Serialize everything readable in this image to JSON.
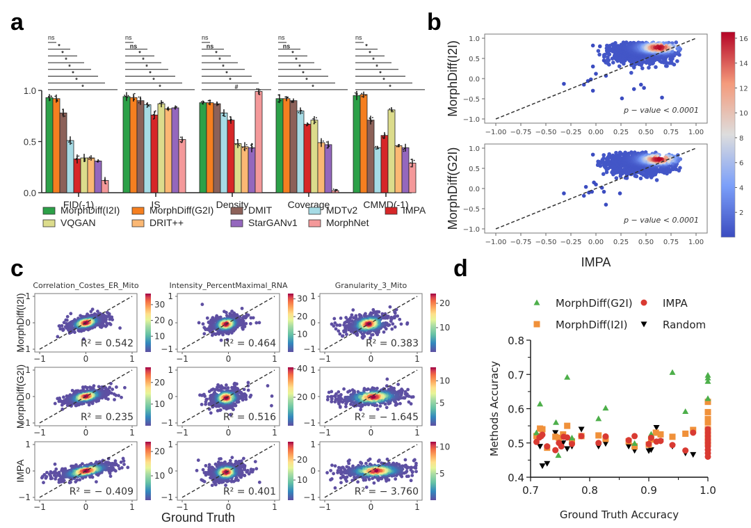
{
  "panels": {
    "a": "a",
    "b": "b",
    "c": "c",
    "d": "d"
  },
  "chart_data": [
    {
      "id": "a",
      "type": "bar",
      "title": "",
      "xlabel": "",
      "ylabel": "",
      "ylim": [
        0,
        1.0
      ],
      "yticks": [
        "0.0",
        "0.5",
        "1.0"
      ],
      "yticks_values": [
        0,
        0.5,
        1.0
      ],
      "categories": [
        "FID(-1)",
        "IS",
        "Density",
        "Coverage",
        "CMMD(-1)"
      ],
      "series": [
        {
          "name": "MorphDiff(I2I)",
          "color": "#2ca048",
          "values": [
            0.93,
            0.94,
            0.88,
            0.92,
            0.95
          ]
        },
        {
          "name": "MorphDiff(G2I)",
          "color": "#f57f20",
          "values": [
            0.92,
            0.93,
            0.88,
            0.92,
            0.96
          ]
        },
        {
          "name": "DMIT",
          "color": "#8c6159",
          "values": [
            0.78,
            0.9,
            0.87,
            0.9,
            0.71
          ]
        },
        {
          "name": "MDTv2",
          "color": "#a6dbe5",
          "values": [
            0.51,
            0.86,
            0.78,
            0.8,
            0.44
          ]
        },
        {
          "name": "IMPA",
          "color": "#d62728",
          "values": [
            0.33,
            0.76,
            0.71,
            0.67,
            0.56
          ]
        },
        {
          "name": "VQGAN",
          "color": "#dcdc8c",
          "values": [
            0.34,
            0.87,
            0.48,
            0.71,
            0.81
          ]
        },
        {
          "name": "DRIT++",
          "color": "#fbb874",
          "values": [
            0.34,
            0.82,
            0.45,
            0.49,
            0.46
          ]
        },
        {
          "name": "StarGANv1",
          "color": "#9467bd",
          "values": [
            0.31,
            0.83,
            0.44,
            0.47,
            0.44
          ]
        },
        {
          "name": "MorphNet",
          "color": "#f4999a",
          "values": [
            0.12,
            0.52,
            0.99,
            0.02,
            0.29
          ]
        }
      ],
      "significance": [
        [
          "ns",
          "*",
          "*",
          "*",
          "*",
          "*",
          "*",
          "*"
        ],
        [
          "ns",
          "ns",
          "*",
          "*",
          "*",
          "*",
          "*",
          "*"
        ],
        [
          "ns",
          "ns",
          "*",
          "*",
          "*",
          "*",
          "*",
          "#"
        ],
        [
          "ns",
          "ns",
          "*",
          "*",
          "*",
          "*",
          "*",
          "*"
        ],
        [
          "ns",
          "*",
          "*",
          "*",
          "*",
          "*",
          "*",
          "*"
        ]
      ],
      "legend": {
        "placement": "bottom",
        "entries": [
          "MorphDiff(I2I)",
          "MorphDiff(G2I)",
          "DMIT",
          "MDTv2",
          "IMPA",
          "VQGAN",
          "DRIT++",
          "StarGANv1",
          "MorphNet"
        ]
      }
    },
    {
      "id": "b",
      "type": "scatter",
      "subplots": [
        {
          "ylabel": "MorphDiff(I2I)",
          "annotation": "p − value < 0.0001",
          "density_peak": [
            0.63,
            0.77
          ],
          "outliers": [
            [
              -0.32,
              -0.13
            ],
            [
              -0.12,
              -0.15
            ],
            [
              -0.05,
              -0.02
            ],
            [
              -0.03,
              -0.3
            ],
            [
              -0.03,
              0.3
            ],
            [
              -0.03,
              0.82
            ],
            [
              0.04,
              0.8
            ],
            [
              0.1,
              0.07
            ],
            [
              0.26,
              -0.49
            ],
            [
              0.38,
              -0.26
            ],
            [
              0.45,
              -0.15
            ],
            [
              0.48,
              -0.23
            ],
            [
              0.66,
              -0.47
            ],
            [
              0.0,
              0.12
            ],
            [
              -0.08,
              -0.06
            ],
            [
              0.08,
              0.45
            ]
          ]
        },
        {
          "ylabel": "MorphDiff(G2I)",
          "annotation": "p − value < 0.0001",
          "density_peak": [
            0.63,
            0.73
          ],
          "outliers": [
            [
              -0.32,
              -0.12
            ],
            [
              -0.12,
              -0.18
            ],
            [
              -0.1,
              0.04
            ],
            [
              -0.07,
              -0.1
            ],
            [
              -0.04,
              -0.08
            ],
            [
              -0.03,
              0.84
            ],
            [
              0.1,
              -0.4
            ],
            [
              0.24,
              -0.12
            ],
            [
              0.08,
              -0.08
            ],
            [
              -0.02,
              0.15
            ],
            [
              0.0,
              0.1
            ],
            [
              0.06,
              0.02
            ]
          ]
        }
      ],
      "xlabel": "IMPA",
      "xlim": [
        -1.0,
        1.0
      ],
      "ylim": [
        -1.0,
        1.0
      ],
      "xticks": [
        "−1.00",
        "−0.75",
        "−0.50",
        "−0.25",
        "0.00",
        "0.25",
        "0.50",
        "0.75",
        "1.00"
      ],
      "yticks": [
        "−1.0",
        "−0.5",
        "0.0",
        "0.5",
        "1.0"
      ],
      "colorbar": {
        "ticks": [
          "2",
          "4",
          "6",
          "8",
          "10",
          "12",
          "14",
          "16"
        ],
        "range": [
          0,
          16.5
        ],
        "cmap": "coolwarm"
      },
      "reference_line": "y = x (dashed)"
    },
    {
      "id": "c",
      "type": "scatter",
      "columns": [
        "Correlation_Costes_ER_Mito",
        "Intensity_PercentMaximal_RNA",
        "Granularity_3_Mito"
      ],
      "rows": [
        "MorphDiff(I2I)",
        "MorphDiff(G2I)",
        "IMPA"
      ],
      "xlabel": "Ground Truth",
      "xlim": [
        -1,
        1
      ],
      "ylim": [
        -1,
        1
      ],
      "xticks": [
        "−1",
        "0",
        "1"
      ],
      "yticks": [
        "−1",
        "0",
        "1"
      ],
      "cmap": "Spectral_r",
      "cells": [
        [
          {
            "r2": "R² = 0.542",
            "cbar_ticks": [
              "10",
              "20",
              "30"
            ],
            "cbar_max": 37
          },
          {
            "r2": "R² = 0.464",
            "cbar_ticks": [
              "10",
              "20",
              "30"
            ],
            "cbar_max": 33
          },
          {
            "r2": "R² = 0.383",
            "cbar_ticks": [
              "10",
              "20"
            ],
            "cbar_max": 24
          }
        ],
        [
          {
            "r2": "R² = 0.235",
            "cbar_ticks": [
              "10",
              "20"
            ],
            "cbar_max": 27
          },
          {
            "r2": "R² = 0.516",
            "cbar_ticks": [
              "20",
              "40"
            ],
            "cbar_max": 41
          },
          {
            "r2": "R² = − 1.645",
            "cbar_ticks": [
              "5",
              "10"
            ],
            "cbar_max": 13
          }
        ],
        [
          {
            "r2": "R² = − 0.409",
            "cbar_ticks": [
              "10",
              "20"
            ],
            "cbar_max": 24
          },
          {
            "r2": "R² = 0.401",
            "cbar_ticks": [
              "10",
              "20"
            ],
            "cbar_max": 29
          },
          {
            "r2": "R² = − 3.760",
            "cbar_ticks": [
              "5",
              "10"
            ],
            "cbar_max": 11
          }
        ]
      ]
    },
    {
      "id": "d",
      "type": "scatter",
      "xlabel": "Ground Truth Accuracy",
      "ylabel": "Methods Accuracy",
      "xlim": [
        0.7,
        1.0
      ],
      "ylim": [
        0.4,
        0.8
      ],
      "xticks": [
        "0.7",
        "0.8",
        "0.9",
        "1.0"
      ],
      "xticks_values": [
        0.7,
        0.8,
        0.9,
        1.0
      ],
      "yticks": [
        "0.4",
        "0.5",
        "0.6",
        "0.7",
        "0.8"
      ],
      "yticks_values": [
        0.4,
        0.5,
        0.6,
        0.7,
        0.8
      ],
      "legend": {
        "placement": "top",
        "entries": [
          "MorphDiff(G2I)",
          "IMPA",
          "MorphDiff(I2I)",
          "Random"
        ]
      },
      "series": [
        {
          "name": "MorphDiff(G2I)",
          "marker": "triangle-up",
          "color": "#4daf4a",
          "points": [
            [
              0.71,
              0.53
            ],
            [
              0.716,
              0.614
            ],
            [
              0.743,
              0.56
            ],
            [
              0.747,
              0.464
            ],
            [
              0.762,
              0.692
            ],
            [
              0.77,
              0.515
            ],
            [
              0.815,
              0.571
            ],
            [
              0.827,
              0.602
            ],
            [
              0.876,
              0.499
            ],
            [
              0.904,
              0.526
            ],
            [
              0.94,
              0.706
            ],
            [
              0.962,
              0.592
            ],
            [
              1.0,
              0.698
            ],
            [
              1.0,
              0.69
            ],
            [
              1.0,
              0.68
            ],
            [
              1.0,
              0.63
            ]
          ]
        },
        {
          "name": "IMPA",
          "marker": "circle",
          "color": "#d93a32",
          "points": [
            [
              0.71,
              0.503
            ],
            [
              0.715,
              0.516
            ],
            [
              0.718,
              0.52
            ],
            [
              0.72,
              0.524
            ],
            [
              0.728,
              0.49
            ],
            [
              0.742,
              0.479
            ],
            [
              0.748,
              0.5
            ],
            [
              0.752,
              0.49
            ],
            [
              0.756,
              0.518
            ],
            [
              0.762,
              0.516
            ],
            [
              0.77,
              0.497
            ],
            [
              0.786,
              0.52
            ],
            [
              0.815,
              0.5
            ],
            [
              0.827,
              0.519
            ],
            [
              0.866,
              0.508
            ],
            [
              0.876,
              0.52
            ],
            [
              0.9,
              0.497
            ],
            [
              0.904,
              0.515
            ],
            [
              0.913,
              0.504
            ],
            [
              0.92,
              0.506
            ],
            [
              0.94,
              0.494
            ],
            [
              0.962,
              0.478
            ],
            [
              0.975,
              0.53
            ],
            [
              1.0,
              0.52
            ],
            [
              1.0,
              0.51
            ],
            [
              1.0,
              0.5
            ],
            [
              1.0,
              0.49
            ],
            [
              1.0,
              0.48
            ],
            [
              1.0,
              0.47
            ],
            [
              1.0,
              0.46
            ],
            [
              1.0,
              0.53
            ],
            [
              1.0,
              0.54
            ]
          ]
        },
        {
          "name": "MorphDiff(I2I)",
          "marker": "square",
          "color": "#f0913a",
          "points": [
            [
              0.71,
              0.52
            ],
            [
              0.716,
              0.542
            ],
            [
              0.72,
              0.54
            ],
            [
              0.728,
              0.486
            ],
            [
              0.742,
              0.518
            ],
            [
              0.748,
              0.515
            ],
            [
              0.755,
              0.525
            ],
            [
              0.762,
              0.55
            ],
            [
              0.77,
              0.505
            ],
            [
              0.786,
              0.52
            ],
            [
              0.815,
              0.522
            ],
            [
              0.827,
              0.512
            ],
            [
              0.866,
              0.505
            ],
            [
              0.876,
              0.49
            ],
            [
              0.9,
              0.495
            ],
            [
              0.904,
              0.51
            ],
            [
              0.912,
              0.53
            ],
            [
              0.92,
              0.525
            ],
            [
              0.94,
              0.518
            ],
            [
              0.962,
              0.527
            ],
            [
              0.975,
              0.538
            ],
            [
              1.0,
              0.62
            ],
            [
              1.0,
              0.59
            ],
            [
              1.0,
              0.57
            ],
            [
              1.0,
              0.56
            ],
            [
              1.0,
              0.54
            ],
            [
              1.0,
              0.52
            ],
            [
              1.0,
              0.5
            ]
          ]
        },
        {
          "name": "Random",
          "marker": "triangle-down",
          "color": "#000000",
          "points": [
            [
              0.716,
              0.49
            ],
            [
              0.72,
              0.433
            ],
            [
              0.728,
              0.44
            ],
            [
              0.742,
              0.53
            ],
            [
              0.75,
              0.51
            ],
            [
              0.755,
              0.5
            ],
            [
              0.762,
              0.483
            ],
            [
              0.77,
              0.49
            ],
            [
              0.786,
              0.54
            ],
            [
              0.815,
              0.49
            ],
            [
              0.827,
              0.498
            ],
            [
              0.866,
              0.49
            ],
            [
              0.876,
              0.478
            ],
            [
              0.9,
              0.477
            ],
            [
              0.904,
              0.48
            ],
            [
              0.913,
              0.545
            ],
            [
              0.92,
              0.505
            ],
            [
              0.94,
              0.49
            ],
            [
              0.962,
              0.47
            ],
            [
              0.975,
              0.466
            ],
            [
              1.0,
              0.535
            ]
          ]
        }
      ]
    }
  ]
}
